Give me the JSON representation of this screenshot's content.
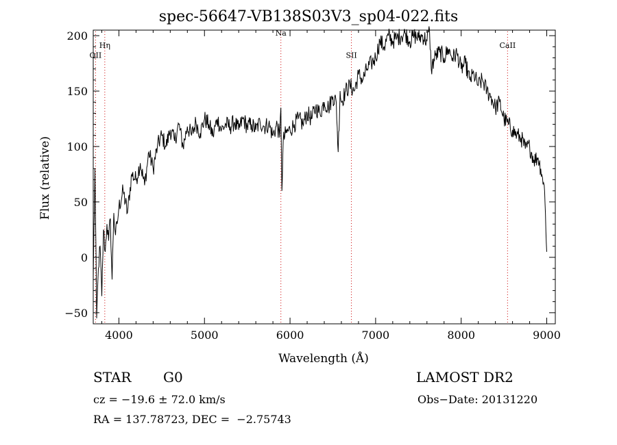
{
  "title": "spec-56647-VB138S03V3_sp04-022.fits",
  "info": {
    "objtype": "STAR",
    "subclass": "G0",
    "survey": "LAMOST DR2",
    "cz": "cz = −19.6 ± 72.0 km/s",
    "obsdate": "Obs−Date: 20131220",
    "radec": "RA = 137.78723, DEC =  −2.75743"
  },
  "chart_data": {
    "type": "line",
    "xlabel": "Wavelength (Å)",
    "ylabel": "Flux (relative)",
    "xlim": [
      3700,
      9100
    ],
    "ylim": [
      -60,
      205
    ],
    "xticks": [
      4000,
      5000,
      6000,
      7000,
      8000,
      9000
    ],
    "xtick_labels": [
      "4000",
      "5000",
      "6000",
      "7000",
      "8000",
      "9000"
    ],
    "yticks": [
      -50,
      0,
      50,
      100,
      150,
      200
    ],
    "ytick_labels": [
      "−50",
      "0",
      "50",
      "100",
      "150",
      "200"
    ],
    "grid": false,
    "line_color": "#000000",
    "marker_color": "#cc0000",
    "lines": [
      {
        "name": "OII",
        "x": 3727,
        "label_y": 180
      },
      {
        "name": "Hη",
        "x": 3835,
        "label_y": 189
      },
      {
        "name": "Na",
        "x": 5893,
        "label_y": 200
      },
      {
        "name": "SII",
        "x": 6717,
        "label_y": 180
      },
      {
        "name": "CaII",
        "x": 8542,
        "label_y": 189
      }
    ],
    "x": [
      3700,
      3720,
      3740,
      3760,
      3780,
      3800,
      3820,
      3840,
      3860,
      3880,
      3900,
      3920,
      3940,
      3960,
      3980,
      4000,
      4050,
      4100,
      4150,
      4200,
      4250,
      4300,
      4350,
      4400,
      4450,
      4500,
      4550,
      4600,
      4650,
      4700,
      4750,
      4800,
      4850,
      4900,
      4950,
      5000,
      5050,
      5100,
      5150,
      5200,
      5250,
      5300,
      5350,
      5400,
      5450,
      5500,
      5550,
      5600,
      5650,
      5700,
      5750,
      5800,
      5850,
      5880,
      5893,
      5905,
      5920,
      5950,
      6000,
      6050,
      6100,
      6150,
      6200,
      6250,
      6300,
      6350,
      6400,
      6450,
      6500,
      6540,
      6563,
      6585,
      6600,
      6650,
      6700,
      6750,
      6800,
      6850,
      6900,
      6950,
      7000,
      7050,
      7100,
      7150,
      7200,
      7250,
      7300,
      7350,
      7400,
      7450,
      7500,
      7550,
      7600,
      7630,
      7650,
      7700,
      7750,
      7800,
      7850,
      7900,
      7950,
      8000,
      8050,
      8100,
      8150,
      8200,
      8250,
      8300,
      8350,
      8400,
      8450,
      8500,
      8550,
      8600,
      8650,
      8700,
      8750,
      8800,
      8850,
      8900,
      8930,
      8950,
      8970,
      8985,
      9000
    ],
    "y": [
      -20,
      80,
      -55,
      -10,
      10,
      -35,
      25,
      5,
      30,
      15,
      35,
      -20,
      40,
      20,
      30,
      45,
      60,
      40,
      75,
      70,
      85,
      65,
      95,
      80,
      100,
      110,
      100,
      115,
      105,
      120,
      100,
      118,
      110,
      122,
      112,
      125,
      120,
      110,
      125,
      115,
      120,
      118,
      122,
      115,
      125,
      118,
      120,
      115,
      122,
      118,
      120,
      110,
      120,
      108,
      135,
      60,
      105,
      112,
      115,
      120,
      125,
      120,
      130,
      125,
      135,
      130,
      140,
      135,
      145,
      140,
      95,
      150,
      140,
      150,
      155,
      150,
      165,
      160,
      170,
      175,
      180,
      195,
      190,
      200,
      195,
      198,
      200,
      202,
      195,
      200,
      198,
      200,
      195,
      205,
      170,
      182,
      185,
      180,
      188,
      180,
      184,
      170,
      175,
      160,
      165,
      155,
      160,
      150,
      145,
      135,
      140,
      125,
      120,
      115,
      110,
      108,
      98,
      100,
      88,
      90,
      80,
      72,
      65,
      40,
      5
    ]
  }
}
